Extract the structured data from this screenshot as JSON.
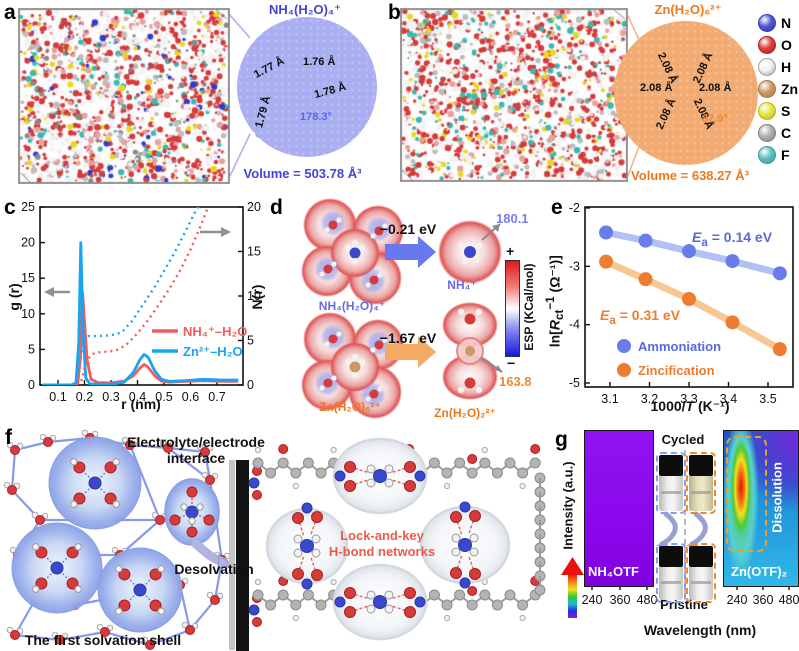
{
  "panels": {
    "a": {
      "label": "a",
      "cluster_title": "NH₄(H₂O)₄⁺",
      "bonds": [
        "1.76 Å",
        "1.77 Å",
        "1.78 Å",
        "1.79 Å"
      ],
      "angle": "178.3°",
      "volume": "Volume = 503.78 Å³",
      "accent_color": "#4343d8"
    },
    "b": {
      "label": "b",
      "cluster_title": "Zn(H₂O)₆²⁺",
      "bond": "2.08 Å",
      "bond_count": 6,
      "angle": "87.9°",
      "volume": "Volume = 638.27 Å³",
      "accent_color": "#f07818"
    },
    "c": {
      "label": "c",
      "ylabel_left": "g (r)",
      "ylabel_right": "N(r)",
      "xlabel": "r (nm)"
    },
    "d": {
      "label": "d",
      "top": {
        "reactant": "NH₄(H₂O)₄⁺",
        "energy": "−0.21 eV",
        "product": "NH₄⁺",
        "esp_value": "180.1"
      },
      "bottom": {
        "reactant": "Zn(H₂O)₆²⁺",
        "energy": "−1.67 eV",
        "product": "Zn(H₂O)₂²⁺",
        "esp_value": "163.8"
      },
      "colorbar": {
        "plus": "+",
        "minus": "−",
        "label": "ESP (KCal/mol)"
      }
    },
    "e": {
      "label": "e",
      "ylabel_parts": {
        "pre": "ln[",
        "sym": "R",
        "sub": "ct",
        "sup": "−1",
        "rest": " (Ω⁻¹)]"
      },
      "xlabel_parts": {
        "pre": "1000/",
        "sym": "T",
        "rest": " (K⁻¹)"
      },
      "ea_blue": {
        "sym": "E",
        "sub": "a",
        "rest": " = 0.14 eV"
      },
      "ea_orange": {
        "sym": "E",
        "sub": "a",
        "rest": " = 0.31 eV"
      }
    },
    "f": {
      "label": "f",
      "interface_line1": "Electrolyte/electrode",
      "interface_line2": "interface",
      "desolvation": "Desolvation",
      "solvation_shell": "The first solvation shell",
      "network_line1": "Lock-and-key",
      "network_line2": "H-bond networks"
    },
    "g": {
      "label": "g",
      "ylabel": "Intensity (a.u.)",
      "xlabel": "Wavelength (nm)",
      "cycled": "Cycled",
      "pristine": "Pristine",
      "left_map_label": "NH₄OTF",
      "right_map_label": "Zn(OTF)₂",
      "dissolution": "Dissolution"
    }
  },
  "atom_legend": [
    {
      "symbol": "N",
      "color": "#5353d6",
      "ring": "#3a3ab0"
    },
    {
      "symbol": "O",
      "color": "#d84040",
      "ring": "#b02020"
    },
    {
      "symbol": "H",
      "color": "#f2f2f2",
      "ring": "#a0a0a0"
    },
    {
      "symbol": "Zn",
      "color": "#cc9966",
      "ring": "#a87848"
    },
    {
      "symbol": "S",
      "color": "#e6e640",
      "ring": "#b8b820"
    },
    {
      "symbol": "C",
      "color": "#b0b0b0",
      "ring": "#808080"
    },
    {
      "symbol": "F",
      "color": "#62c0bb",
      "ring": "#3a9a95"
    }
  ],
  "chart_data": [
    {
      "panel": "c",
      "type": "line",
      "title": "",
      "xlabel": "r (nm)",
      "ylabel_left": "g (r)",
      "ylabel_right": "N(r)",
      "xlim": [
        0.032,
        0.798
      ],
      "ylim_left": [
        0,
        25
      ],
      "ylim_right": [
        0,
        20
      ],
      "xticks": [
        0.1,
        0.2,
        0.3,
        0.4,
        0.5,
        0.6,
        0.7
      ],
      "yticks_left": [
        0,
        5,
        10,
        15,
        20,
        25
      ],
      "yticks_right": [
        0,
        5,
        10,
        15,
        20
      ],
      "grid": false,
      "legend_position": "center-right",
      "series": [
        {
          "name": "NH₄⁺–H₂O",
          "quantity": "g(r)",
          "axis": "left",
          "style": "solid",
          "color": "#f55b5b",
          "x": [
            0.04,
            0.12,
            0.16,
            0.175,
            0.185,
            0.193,
            0.2,
            0.21,
            0.225,
            0.25,
            0.3,
            0.35,
            0.385,
            0.41,
            0.425,
            0.44,
            0.465,
            0.49,
            0.52,
            0.58,
            0.65,
            0.72,
            0.78
          ],
          "y": [
            0,
            0,
            0,
            0.3,
            4,
            13,
            9,
            3.5,
            0.8,
            0.35,
            0.3,
            0.55,
            1.3,
            2.4,
            2.9,
            2.5,
            1.3,
            0.55,
            0.4,
            0.5,
            0.6,
            0.5,
            0.5
          ]
        },
        {
          "name": "Zn²⁺–H₂O",
          "quantity": "g(r)",
          "axis": "left",
          "style": "solid",
          "color": "#18a4f0",
          "x": [
            0.04,
            0.15,
            0.168,
            0.178,
            0.186,
            0.195,
            0.205,
            0.22,
            0.3,
            0.35,
            0.385,
            0.41,
            0.425,
            0.44,
            0.465,
            0.49,
            0.52,
            0.58,
            0.65,
            0.72,
            0.78
          ],
          "y": [
            0,
            0,
            0.3,
            6,
            20,
            7,
            1,
            0.15,
            0.1,
            0.4,
            1.8,
            3.6,
            4.3,
            3.9,
            2,
            0.8,
            0.5,
            0.6,
            0.8,
            0.7,
            0.7
          ]
        },
        {
          "name": "NH₄⁺–H₂O",
          "quantity": "N(r)",
          "axis": "right",
          "style": "dotted",
          "color": "#f55b5b",
          "x": [
            0.17,
            0.19,
            0.2,
            0.215,
            0.23,
            0.26,
            0.3,
            0.33,
            0.36,
            0.4,
            0.44,
            0.48,
            0.52,
            0.56,
            0.6,
            0.64,
            0.67
          ],
          "y": [
            0,
            0.6,
            1.8,
            3.0,
            3.5,
            3.7,
            3.8,
            4.0,
            4.6,
            5.8,
            7.3,
            9.0,
            10.8,
            12.8,
            15.2,
            18.0,
            20.3
          ]
        },
        {
          "name": "Zn²⁺–H₂O",
          "quantity": "N(r)",
          "axis": "right",
          "style": "dotted",
          "color": "#18a4f0",
          "x": [
            0.15,
            0.17,
            0.18,
            0.19,
            0.2,
            0.215,
            0.25,
            0.3,
            0.34,
            0.38,
            0.42,
            0.46,
            0.5,
            0.54,
            0.58,
            0.62,
            0.635
          ],
          "y": [
            0,
            0.4,
            2,
            4,
            5.2,
            5.5,
            5.5,
            5.6,
            5.9,
            7.2,
            9.0,
            10.8,
            12.8,
            14.9,
            17.2,
            19.6,
            20.3
          ]
        }
      ]
    },
    {
      "panel": "e",
      "type": "scatter-line",
      "xlabel": "1000/T (K⁻¹)",
      "ylabel": "ln[Rct⁻¹ (Ω⁻¹)]",
      "xlim": [
        3.05,
        3.57
      ],
      "ylim": [
        -5,
        -2
      ],
      "xticks": [
        3.1,
        3.2,
        3.3,
        3.4,
        3.5
      ],
      "yticks": [
        -2,
        -3,
        -4,
        -5
      ],
      "grid": false,
      "series": [
        {
          "name": "Ammoniation",
          "Ea": "0.14 eV",
          "color": "#6a7ce8",
          "line_color": "#b2c0f4",
          "x": [
            3.09,
            3.19,
            3.3,
            3.41,
            3.53
          ],
          "y": [
            -2.42,
            -2.56,
            -2.74,
            -2.91,
            -3.12
          ]
        },
        {
          "name": "Zincification",
          "Ea": "0.31 eV",
          "color": "#ed7d31",
          "line_color": "#f8c894",
          "x": [
            3.09,
            3.19,
            3.3,
            3.41,
            3.53
          ],
          "y": [
            -2.92,
            -3.22,
            -3.56,
            -3.96,
            -4.42
          ]
        }
      ]
    },
    {
      "panel": "g",
      "type": "heatmap",
      "xlabel": "Wavelength (nm)",
      "ylabel": "Intensity (a.u.)",
      "maps": [
        {
          "label": "NH₄OTF",
          "xticks": [
            240,
            360,
            480
          ],
          "description": "uniform violet background, no emission feature"
        },
        {
          "label": "Zn(OTF)₂",
          "xticks": [
            240,
            360,
            480
          ],
          "description": "strong vertical emission streak near 260–290 nm (red core, green edge) annotated Dissolution; blue background with violet upper-right region"
        }
      ]
    }
  ]
}
